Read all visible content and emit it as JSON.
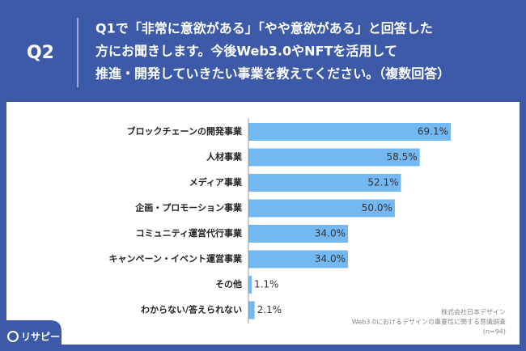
{
  "header": {
    "label": "Q2",
    "question": [
      "Q1で「非常に意欲がある」「やや意欲がある」と回答した",
      "方にお聞きします。今後Web3.0やNFTを活用して",
      "推進・開発していきたい事業を教えてください。（複数回答）"
    ]
  },
  "chart_data": {
    "type": "bar",
    "orientation": "horizontal",
    "categories": [
      "ブロックチェーンの開発事業",
      "人材事業",
      "メディア事業",
      "企画・プロモーション事業",
      "コミュニティ運営代行事業",
      "キャンペーン・イベント運営事業",
      "その他",
      "わからない/答えられない"
    ],
    "values": [
      69.1,
      58.5,
      52.1,
      50.0,
      34.0,
      34.0,
      1.1,
      2.1
    ],
    "value_labels": [
      "69.1%",
      "58.5%",
      "52.1%",
      "50.0%",
      "34.0%",
      "34.0%",
      "1.1%",
      "2.1%"
    ],
    "color": "#74b8f2"
  },
  "source": [
    "株式会社日本デザイン",
    "Web3.0におけるデザインの重要性に関する意識調査",
    "(n=94)"
  ],
  "logo": "リサピー"
}
